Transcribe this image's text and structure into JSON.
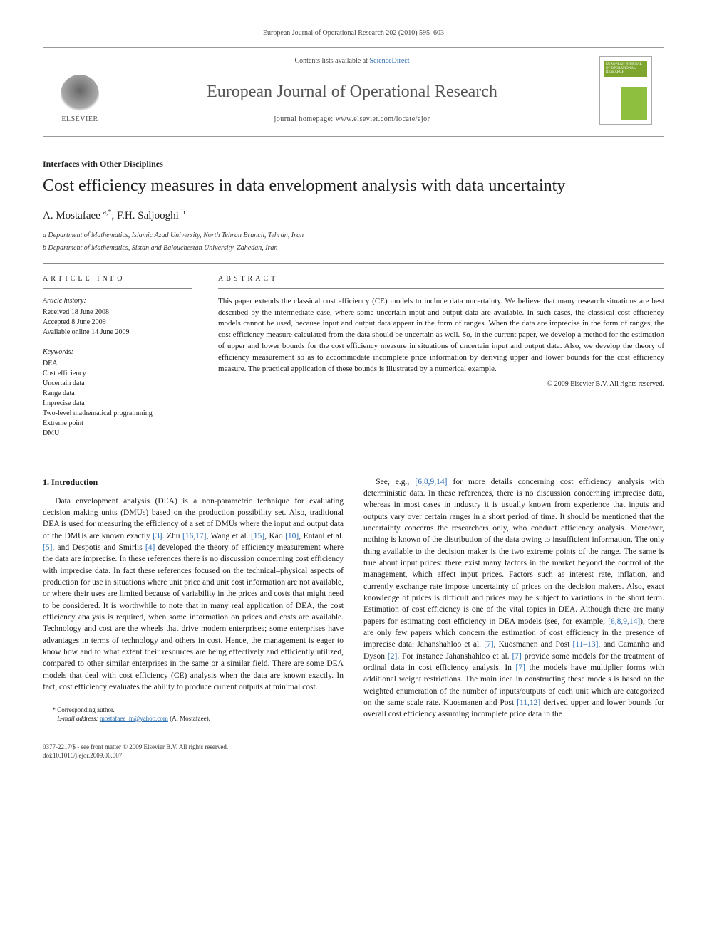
{
  "citation": "European Journal of Operational Research 202 (2010) 595–603",
  "header": {
    "publisher": "ELSEVIER",
    "contents_prefix": "Contents lists available at ",
    "contents_link": "ScienceDirect",
    "journal": "European Journal of Operational Research",
    "homepage_prefix": "journal homepage: ",
    "homepage": "www.elsevier.com/locate/ejor",
    "cover_text": "EUROPEAN JOURNAL OF OPERATIONAL RESEARCH"
  },
  "section_label": "Interfaces with Other Disciplines",
  "title": "Cost efficiency measures in data envelopment analysis with data uncertainty",
  "authors_html": "A. Mostafaee <sup>a,*</sup>, F.H. Saljooghi <sup>b</sup>",
  "affiliations": [
    "a Department of Mathematics, Islamic Azad University, North Tehran Branch, Tehran, Iran",
    "b Department of Mathematics, Sistan and Balouchestan University, Zahedan, Iran"
  ],
  "info": {
    "heading": "ARTICLE INFO",
    "history_label": "Article history:",
    "history": [
      "Received 18 June 2008",
      "Accepted 8 June 2009",
      "Available online 14 June 2009"
    ],
    "keywords_label": "Keywords:",
    "keywords": [
      "DEA",
      "Cost efficiency",
      "Uncertain data",
      "Range data",
      "Imprecise data",
      "Two-level mathematical programming",
      "Extreme point",
      "DMU"
    ]
  },
  "abstract": {
    "heading": "ABSTRACT",
    "text": "This paper extends the classical cost efficiency (CE) models to include data uncertainty. We believe that many research situations are best described by the intermediate case, where some uncertain input and output data are available. In such cases, the classical cost efficiency models cannot be used, because input and output data appear in the form of ranges. When the data are imprecise in the form of ranges, the cost efficiency measure calculated from the data should be uncertain as well. So, in the current paper, we develop a method for the estimation of upper and lower bounds for the cost efficiency measure in situations of uncertain input and output data. Also, we develop the theory of efficiency measurement so as to accommodate incomplete price information by deriving upper and lower bounds for the cost efficiency measure. The practical application of these bounds is illustrated by a numerical example.",
    "copyright": "© 2009 Elsevier B.V. All rights reserved."
  },
  "body": {
    "heading": "1. Introduction",
    "col1": "Data envelopment analysis (DEA) is a non-parametric technique for evaluating decision making units (DMUs) based on the production possibility set. Also, traditional DEA is used for measuring the efficiency of a set of DMUs where the input and output data of the DMUs are known exactly [3]. Zhu [16,17], Wang et al. [15], Kao [10], Entani et al. [5], and Despotis and Smirlis [4] developed the theory of efficiency measurement where the data are imprecise. In these references there is no discussion concerning cost efficiency with imprecise data. In fact these references focused on the technical–physical aspects of production for use in situations where unit price and unit cost information are not available, or where their uses are limited because of variability in the prices and costs that might need to be considered. It is worthwhile to note that in many real application of DEA, the cost efficiency analysis is required, when some information on prices and costs are available. Technology and cost are the wheels that drive modern enterprises; some enterprises have advantages in terms of technology and others in cost. Hence, the management is eager to know how and to what extent their resources are being effectively and efficiently utilized, compared to other similar enterprises in the same or a similar field. There are some DEA models that deal with cost efficiency (CE) analysis when the data are known exactly. In fact, cost efficiency evaluates the ability to produce current outputs at minimal cost.",
    "col2": "See, e.g., [6,8,9,14] for more details concerning cost efficiency analysis with deterministic data. In these references, there is no discussion concerning imprecise data, whereas in most cases in industry it is usually known from experience that inputs and outputs vary over certain ranges in a short period of time. It should be mentioned that the uncertainty concerns the researchers only, who conduct efficiency analysis. Moreover, nothing is known of the distribution of the data owing to insufficient information. The only thing available to the decision maker is the two extreme points of the range. The same is true about input prices: there exist many factors in the market beyond the control of the management, which affect input prices. Factors such as interest rate, inflation, and currently exchange rate impose uncertainty of prices on the decision makers. Also, exact knowledge of prices is difficult and prices may be subject to variations in the short term. Estimation of cost efficiency is one of the vital topics in DEA. Although there are many papers for estimating cost efficiency in DEA models (see, for example, [6,8,9,14]), there are only few papers which concern the estimation of cost efficiency in the presence of imprecise data: Jahanshahloo et al. [7], Kuosmanen and Post [11–13], and Camanho and Dyson [2]. For instance Jahanshahloo et al. [7] provide some models for the treatment of ordinal data in cost efficiency analysis. In [7] the models have multiplier forms with additional weight restrictions. The main idea in constructing these models is based on the weighted enumeration of the number of inputs/outputs of each unit which are categorized on the same scale rate. Kuosmanen and Post [11,12] derived upper and lower bounds for overall cost efficiency assuming incomplete price data in the"
  },
  "footnotes": {
    "corr": "* Corresponding author.",
    "email_label": "E-mail address:",
    "email": "mostafaee_m@yahoo.com",
    "email_suffix": "(A. Mostafaee)."
  },
  "footer": {
    "left1": "0377-2217/$ - see front matter © 2009 Elsevier B.V. All rights reserved.",
    "left2": "doi:10.1016/j.ejor.2009.06.007"
  },
  "colors": {
    "link": "#2a6cb0",
    "rule": "#888888",
    "cover_green": "#8fbf3f"
  }
}
